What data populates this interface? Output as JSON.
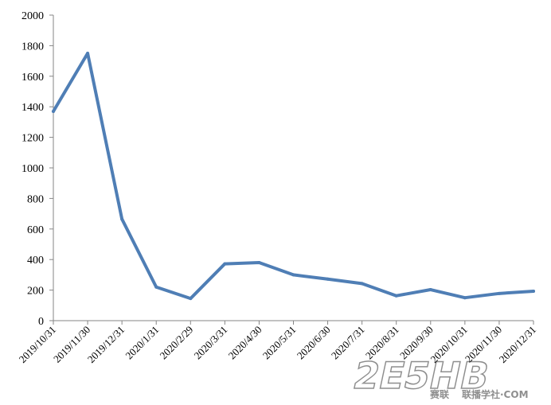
{
  "chart_data": {
    "type": "line",
    "title": "",
    "xlabel": "",
    "ylabel": "",
    "ylim": [
      0,
      2000
    ],
    "yticks": [
      "0",
      "200",
      "400",
      "600",
      "800",
      "1000",
      "1200",
      "1400",
      "1600",
      "1800",
      "2000"
    ],
    "categories": [
      "2019/10/31",
      "2019/11/30",
      "2019/12/31",
      "2020/1/31",
      "2020/2/29",
      "2020/3/31",
      "2020/4/30",
      "2020/5/31",
      "2020/6/30",
      "2020/7/31",
      "2020/8/31",
      "2020/9/30",
      "2020/10/31",
      "2020/11/30",
      "2020/12/31"
    ],
    "series": [
      {
        "values": [
          1370,
          1750,
          665,
          220,
          145,
          372,
          380,
          300,
          272,
          243,
          163,
          203,
          150,
          178,
          193
        ]
      }
    ],
    "color": "#4f7eb5",
    "grid": false,
    "legend": "none"
  },
  "watermark": {
    "big_text": "2E5HB",
    "small_text": "赛联",
    "url_text": "联播学社·COM"
  }
}
